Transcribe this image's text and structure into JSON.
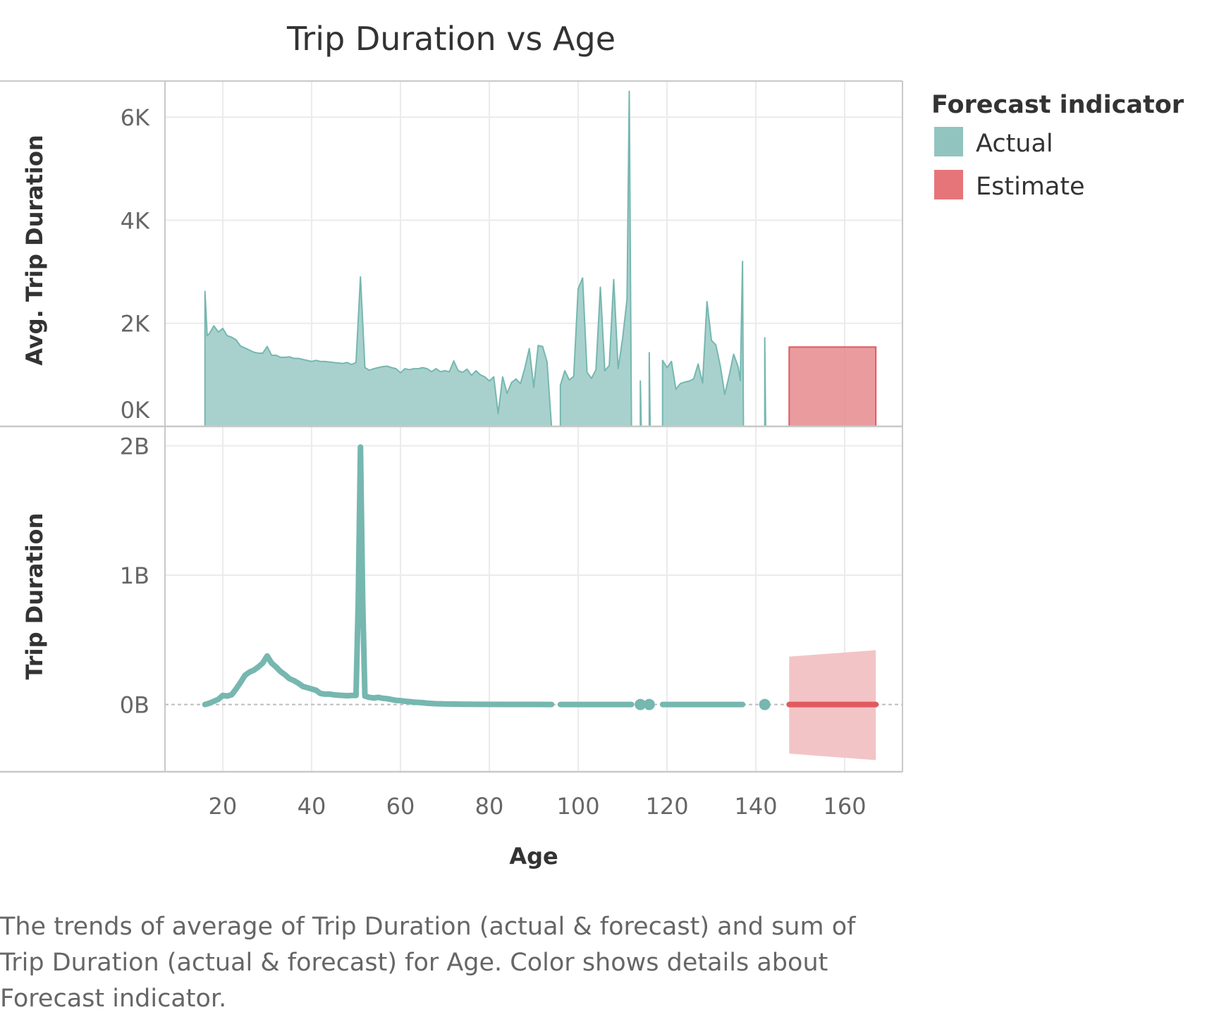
{
  "title": "Trip Duration vs Age",
  "caption": "The trends of average of Trip Duration (actual & forecast)  and sum of Trip Duration (actual & forecast)  for Age.  Color shows details about Forecast indicator.",
  "legend": {
    "title": "Forecast indicator",
    "items": [
      {
        "label": "Actual",
        "color": "#92C4BF"
      },
      {
        "label": "Estimate",
        "color": "#E6757A"
      }
    ]
  },
  "colors": {
    "actual_line": "#76B7B0",
    "actual_area": "#A8D1CD",
    "estimate_line": "#E05A5F",
    "estimate_area": "#E68A8D",
    "estimate_band": "#F3C4C6",
    "grid": "#EBEBEB",
    "frame": "#C8C8C8"
  },
  "chart_data": [
    {
      "type": "area",
      "title": "",
      "xlabel": "Age",
      "ylabel": "Avg. Trip Duration",
      "xlim": [
        7,
        173
      ],
      "ylim": [
        0,
        6700
      ],
      "x_ticks": [
        {
          "value": 20,
          "label": "20"
        },
        {
          "value": 40,
          "label": "40"
        },
        {
          "value": 60,
          "label": "60"
        },
        {
          "value": 80,
          "label": "80"
        },
        {
          "value": 100,
          "label": "100"
        },
        {
          "value": 120,
          "label": "120"
        },
        {
          "value": 140,
          "label": "140"
        },
        {
          "value": 160,
          "label": "160"
        }
      ],
      "y_ticks": [
        {
          "value": 0,
          "label": "0K"
        },
        {
          "value": 2000,
          "label": "2K"
        },
        {
          "value": 4000,
          "label": "4K"
        },
        {
          "value": 6000,
          "label": "6K"
        }
      ],
      "grid": true,
      "series": [
        {
          "name": "Actual",
          "segments": [
            [
              [
                16,
                2620
              ],
              [
                16.5,
                1760
              ],
              [
                17,
                1800
              ],
              [
                18,
                1950
              ],
              [
                19,
                1830
              ],
              [
                20,
                1900
              ],
              [
                21,
                1760
              ],
              [
                22,
                1730
              ],
              [
                23,
                1680
              ],
              [
                24,
                1560
              ],
              [
                25,
                1520
              ],
              [
                26,
                1480
              ],
              [
                27,
                1440
              ],
              [
                28,
                1420
              ],
              [
                29,
                1420
              ],
              [
                30,
                1550
              ],
              [
                31,
                1380
              ],
              [
                32,
                1380
              ],
              [
                33,
                1340
              ],
              [
                34,
                1340
              ],
              [
                35,
                1350
              ],
              [
                36,
                1320
              ],
              [
                37,
                1320
              ],
              [
                38,
                1300
              ],
              [
                39,
                1280
              ],
              [
                40,
                1260
              ],
              [
                41,
                1280
              ],
              [
                42,
                1260
              ],
              [
                43,
                1260
              ],
              [
                44,
                1250
              ],
              [
                45,
                1240
              ],
              [
                46,
                1230
              ],
              [
                47,
                1220
              ],
              [
                48,
                1240
              ],
              [
                49,
                1200
              ],
              [
                50,
                1240
              ],
              [
                51,
                2900
              ],
              [
                52,
                1140
              ],
              [
                53,
                1090
              ],
              [
                54,
                1120
              ],
              [
                55,
                1140
              ],
              [
                56,
                1160
              ],
              [
                57,
                1170
              ],
              [
                58,
                1140
              ],
              [
                59,
                1120
              ],
              [
                60,
                1040
              ],
              [
                61,
                1120
              ],
              [
                62,
                1100
              ],
              [
                63,
                1120
              ],
              [
                64,
                1120
              ],
              [
                65,
                1140
              ],
              [
                66,
                1120
              ],
              [
                67,
                1060
              ],
              [
                68,
                1120
              ],
              [
                69,
                1060
              ],
              [
                70,
                1080
              ],
              [
                71,
                1060
              ],
              [
                72,
                1270
              ],
              [
                73,
                1080
              ],
              [
                74,
                1050
              ],
              [
                75,
                1110
              ],
              [
                76,
                990
              ],
              [
                77,
                1080
              ],
              [
                78,
                1000
              ],
              [
                79,
                960
              ],
              [
                80,
                880
              ],
              [
                81,
                960
              ],
              [
                82,
                250
              ],
              [
                83,
                960
              ],
              [
                84,
                640
              ],
              [
                85,
                850
              ],
              [
                86,
                920
              ],
              [
                87,
                830
              ],
              [
                88,
                1130
              ],
              [
                89,
                1510
              ],
              [
                90,
                760
              ],
              [
                91,
                1570
              ],
              [
                92,
                1550
              ],
              [
                93,
                1250
              ],
              [
                94,
                0
              ]
            ],
            [
              [
                96,
                800
              ],
              [
                97,
                1080
              ],
              [
                98,
                900
              ],
              [
                99,
                970
              ],
              [
                100,
                2670
              ],
              [
                101,
                2880
              ],
              [
                102,
                1050
              ],
              [
                103,
                930
              ],
              [
                104,
                1100
              ],
              [
                105,
                2700
              ],
              [
                106,
                1080
              ],
              [
                107,
                1180
              ],
              [
                108,
                2850
              ],
              [
                109,
                1120
              ],
              [
                110,
                1700
              ],
              [
                111,
                2470
              ],
              [
                111.5,
                6500
              ],
              [
                112,
                0
              ]
            ],
            [
              [
                114,
                880
              ],
              [
                114.2,
                0
              ]
            ],
            [
              [
                116,
                1430
              ],
              [
                116.2,
                0
              ]
            ],
            [
              [
                119,
                1280
              ],
              [
                120,
                1140
              ],
              [
                121,
                1260
              ],
              [
                122,
                720
              ],
              [
                123,
                830
              ],
              [
                124,
                860
              ],
              [
                125,
                880
              ],
              [
                126,
                920
              ],
              [
                127,
                1210
              ],
              [
                128,
                840
              ],
              [
                129,
                2420
              ],
              [
                130,
                1670
              ],
              [
                131,
                1580
              ],
              [
                132,
                1170
              ],
              [
                133,
                620
              ],
              [
                134,
                990
              ],
              [
                135,
                1400
              ],
              [
                136,
                1160
              ],
              [
                136.5,
                890
              ],
              [
                137,
                3200
              ],
              [
                137.2,
                0
              ]
            ],
            [
              [
                142,
                1720
              ],
              [
                142.2,
                0
              ]
            ]
          ]
        },
        {
          "name": "Estimate",
          "segments": [
            [
              [
                147.5,
                1540
              ],
              [
                167,
                1540
              ]
            ]
          ]
        }
      ]
    },
    {
      "type": "line",
      "title": "",
      "xlabel": "Age",
      "ylabel": "Trip Duration",
      "xlim": [
        7,
        173
      ],
      "ylim": [
        -520000000,
        2150000000
      ],
      "y_ticks": [
        {
          "value": 0,
          "label": "0B"
        },
        {
          "value": 1000000000,
          "label": "1B"
        },
        {
          "value": 2000000000,
          "label": "2B"
        }
      ],
      "grid": true,
      "series": [
        {
          "name": "Actual",
          "segments": [
            [
              [
                16,
                0
              ],
              [
                17,
                10000000
              ],
              [
                18,
                25000000
              ],
              [
                19,
                40000000
              ],
              [
                20,
                70000000
              ],
              [
                21,
                65000000
              ],
              [
                22,
                75000000
              ],
              [
                23,
                120000000
              ],
              [
                24,
                170000000
              ],
              [
                25,
                225000000
              ],
              [
                26,
                250000000
              ],
              [
                27,
                265000000
              ],
              [
                28,
                290000000
              ],
              [
                29,
                320000000
              ],
              [
                30,
                375000000
              ],
              [
                31,
                320000000
              ],
              [
                32,
                290000000
              ],
              [
                33,
                255000000
              ],
              [
                34,
                230000000
              ],
              [
                35,
                200000000
              ],
              [
                36,
                185000000
              ],
              [
                37,
                165000000
              ],
              [
                38,
                140000000
              ],
              [
                39,
                130000000
              ],
              [
                40,
                120000000
              ],
              [
                41,
                110000000
              ],
              [
                42,
                85000000
              ],
              [
                43,
                80000000
              ],
              [
                44,
                80000000
              ],
              [
                45,
                75000000
              ],
              [
                46,
                72000000
              ],
              [
                47,
                70000000
              ],
              [
                48,
                68000000
              ],
              [
                49,
                70000000
              ],
              [
                50,
                70000000
              ],
              [
                50.5,
                800000000
              ],
              [
                51,
                1990000000
              ],
              [
                51.5,
                800000000
              ],
              [
                52,
                65000000
              ],
              [
                53,
                55000000
              ],
              [
                54,
                50000000
              ],
              [
                55,
                55000000
              ],
              [
                56,
                48000000
              ],
              [
                57,
                45000000
              ],
              [
                58,
                38000000
              ],
              [
                59,
                32000000
              ],
              [
                60,
                30000000
              ],
              [
                61,
                25000000
              ],
              [
                62,
                22000000
              ],
              [
                63,
                18000000
              ],
              [
                64,
                16000000
              ],
              [
                65,
                14000000
              ],
              [
                66,
                10000000
              ],
              [
                67,
                8000000
              ],
              [
                68,
                6000000
              ],
              [
                69,
                5000000
              ],
              [
                70,
                4000000
              ],
              [
                72,
                3000000
              ],
              [
                75,
                2000000
              ],
              [
                78,
                1000000
              ],
              [
                85,
                500000
              ],
              [
                94,
                0
              ]
            ],
            [
              [
                96,
                0
              ],
              [
                112,
                0
              ]
            ],
            [
              [
                114,
                0
              ]
            ],
            [
              [
                116,
                0
              ]
            ],
            [
              [
                119,
                0
              ],
              [
                137,
                0
              ]
            ],
            [
              [
                142,
                0
              ]
            ]
          ]
        },
        {
          "name": "Estimate",
          "segments": [
            [
              [
                147.5,
                0
              ],
              [
                167,
                0
              ]
            ]
          ],
          "band": [
            [
              147.5,
              370000000,
              -380000000
            ],
            [
              167,
              420000000,
              -430000000
            ]
          ]
        }
      ]
    }
  ]
}
